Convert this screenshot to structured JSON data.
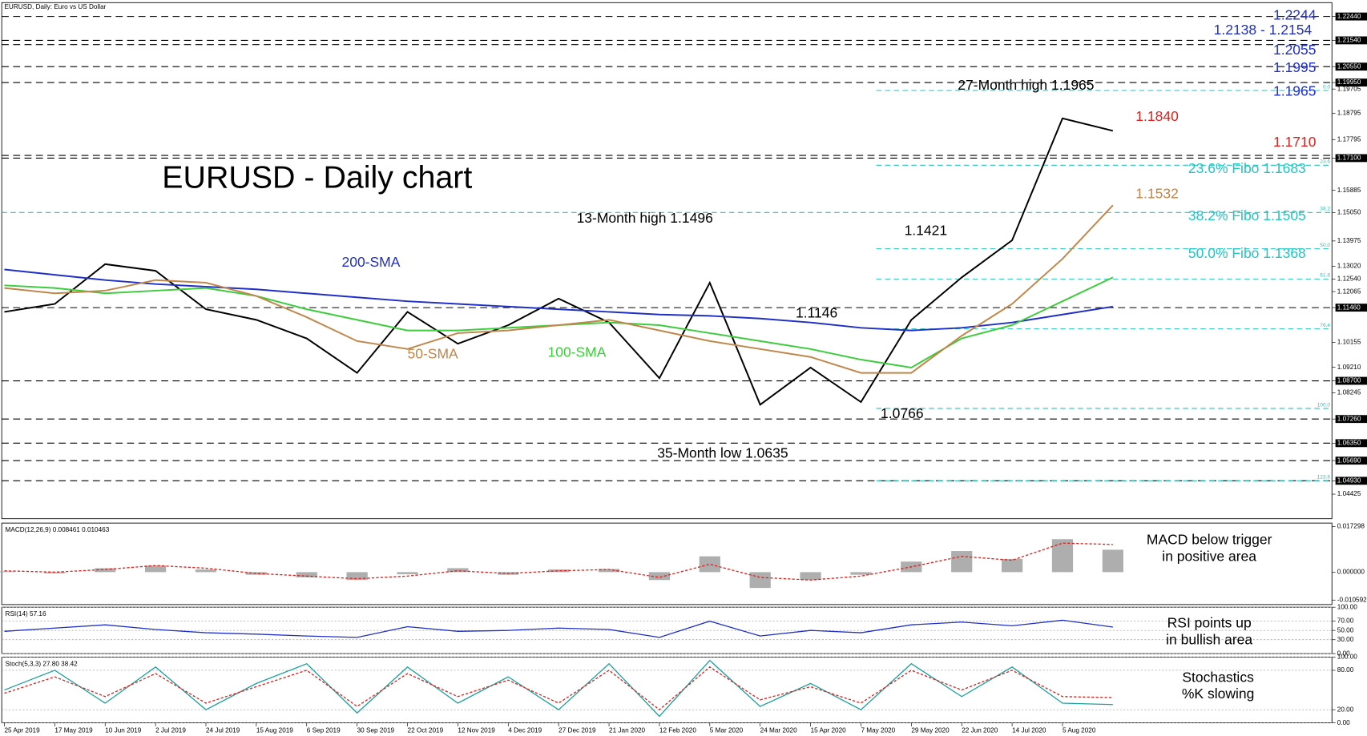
{
  "header": "EURUSD, Daily:  Euro vs US Dollar",
  "chart_data": [
    {
      "type": "line",
      "categories": [
        "25 Apr 2019",
        "17 May 2019",
        "10 Jun 2019",
        "2 Jul 2019",
        "24 Jul 2019",
        "15 Aug 2019",
        "6 Sep 2019",
        "30 Sep 2019",
        "22 Oct 2019",
        "12 Nov 2019",
        "4 Dec 2019",
        "27 Dec 2019",
        "21 Jan 2020",
        "12 Feb 2020",
        "5 Mar 2020",
        "24 Mar 2020",
        "15 Apr 2020",
        "7 May 2020",
        "29 May 2020",
        "22 Jun 2020",
        "14 Jul 2020",
        "5 Aug 2020",
        null
      ],
      "series": [
        {
          "color": "#000000",
          "values": [
            1.113,
            1.116,
            1.131,
            1.1285,
            1.114,
            1.11,
            1.103,
            1.09,
            1.113,
            1.101,
            1.108,
            1.118,
            1.109,
            1.088,
            1.124,
            1.078,
            1.092,
            1.079,
            1.11,
            1.126,
            1.14,
            1.186,
            1.1813
          ]
        },
        {
          "name": "200-SMA",
          "color": "#1f2fc8",
          "values": [
            1.129,
            1.127,
            1.125,
            1.1235,
            1.1225,
            1.1215,
            1.12,
            1.1185,
            1.117,
            1.116,
            1.115,
            1.114,
            1.113,
            1.112,
            1.1115,
            1.1105,
            1.109,
            1.107,
            1.106,
            1.107,
            1.109,
            1.112,
            1.115
          ]
        },
        {
          "name": "100-SMA",
          "color": "#3ccc3c",
          "values": [
            1.123,
            1.122,
            1.12,
            1.121,
            1.122,
            1.119,
            1.114,
            1.11,
            1.106,
            1.106,
            1.107,
            1.108,
            1.109,
            1.108,
            1.105,
            1.102,
            1.099,
            1.095,
            1.092,
            1.103,
            1.108,
            1.117,
            1.126
          ]
        },
        {
          "name": "50-SMA",
          "color": "#c0864a",
          "values": [
            1.122,
            1.12,
            1.121,
            1.125,
            1.124,
            1.119,
            1.111,
            1.102,
            1.099,
            1.105,
            1.106,
            1.108,
            1.11,
            1.106,
            1.102,
            1.099,
            1.096,
            1.09,
            1.09,
            1.104,
            1.116,
            1.133,
            1.1532
          ]
        }
      ],
      "ylim": [
        1.035,
        1.226
      ],
      "yticks": [
        {
          "value": 1.2244,
          "label": "1.22440"
        },
        {
          "value": 1.2154,
          "label": "1.21540"
        },
        {
          "value": 1.2055,
          "label": "1.20550"
        },
        {
          "value": 1.1995,
          "label": "1.19950"
        },
        {
          "value": 1.19705,
          "label": "1.19705"
        },
        {
          "value": 1.18795,
          "label": "1.18795"
        },
        {
          "value": 1.17795,
          "label": "1.17795"
        },
        {
          "value": 1.171,
          "label": "1.17100"
        },
        {
          "value": 1.15885,
          "label": "1.15885"
        },
        {
          "value": 1.1505,
          "label": "1.15050"
        },
        {
          "value": 1.13975,
          "label": "1.13975"
        },
        {
          "value": 1.1302,
          "label": "1.13020"
        },
        {
          "value": 1.1254,
          "label": "1.12540"
        },
        {
          "value": 1.12065,
          "label": "1.12065"
        },
        {
          "value": 1.1146,
          "label": "1.11460"
        },
        {
          "value": 1.10155,
          "label": "1.10155"
        },
        {
          "value": 1.0921,
          "label": "1.09210"
        },
        {
          "value": 1.087,
          "label": "1.08700"
        },
        {
          "value": 1.08245,
          "label": "1.08245"
        },
        {
          "value": 1.0726,
          "label": "1.07260"
        },
        {
          "value": 1.0635,
          "label": "1.06350"
        },
        {
          "value": 1.0569,
          "label": "1.05690"
        },
        {
          "value": 1.0493,
          "label": "1.04930"
        },
        {
          "value": 1.04425,
          "label": "1.04425"
        }
      ],
      "levels": [
        1.2244,
        1.2154,
        1.2138,
        1.2055,
        1.1995,
        1.172,
        1.171,
        1.1146,
        1.087,
        1.0726,
        1.0635,
        1.0569,
        1.0493
      ],
      "fib_levels": [
        {
          "value": 1.1965,
          "label": "0.0"
        },
        {
          "value": 1.1683,
          "label": "23.6"
        },
        {
          "value": 1.1505,
          "label": "38.2"
        },
        {
          "value": 1.1368,
          "label": "50.0"
        },
        {
          "value": 1.1254,
          "label": "61.8"
        },
        {
          "value": 1.1066,
          "label": "76.4"
        },
        {
          "value": 1.0766,
          "label": "100.0"
        },
        {
          "value": 1.0493,
          "label": "123.6"
        }
      ],
      "fib_color": "#22c4c4",
      "annotations": [
        {
          "text": "EURUSD - Daily chart",
          "color": "#000000"
        },
        {
          "text": "13-Month high 1.1496",
          "color": "#000000"
        },
        {
          "text": "1.1421",
          "color": "#000000"
        },
        {
          "text": "1.1146",
          "color": "#000000"
        },
        {
          "text": "1.0766",
          "color": "#000000"
        },
        {
          "text": "35-Month low 1.0635",
          "color": "#000000"
        },
        {
          "text": "27-Month high 1.1965",
          "color": "#000000"
        },
        {
          "text": "1.1840",
          "color": "#e0201c"
        },
        {
          "text": "1.1710",
          "color": "#e0201c"
        },
        {
          "text": "1.1532",
          "color": "#c0864a"
        },
        {
          "text": "23.6% Fibo 1.1683",
          "color": "#22c4c4"
        },
        {
          "text": "38.2% Fibo 1.1505",
          "color": "#22c4c4"
        },
        {
          "text": "50.0% Fibo 1.1368",
          "color": "#22c4c4"
        },
        {
          "text": "1.2244",
          "color": "#1f2fc8"
        },
        {
          "text": "1.2138 - 1.2154",
          "color": "#1f2fc8"
        },
        {
          "text": "1.2055",
          "color": "#1f2fc8"
        },
        {
          "text": "1.1995",
          "color": "#1f2fc8"
        },
        {
          "text": "1.1965",
          "color": "#1f2fc8"
        }
      ]
    },
    {
      "type": "bar",
      "title": "MACD(12,26,9) 0.008461 0.010463",
      "color": "#9a9a9a",
      "values": [
        0.0003,
        -0.0005,
        0.0015,
        0.0025,
        0.001,
        -0.001,
        -0.002,
        -0.003,
        -0.0008,
        0.0015,
        -0.001,
        0.001,
        0.0012,
        -0.003,
        0.006,
        -0.006,
        -0.003,
        -0.001,
        0.004,
        0.008,
        0.005,
        0.0125,
        0.0085
      ],
      "series": [
        {
          "color": "#e0201c",
          "values": [
            0.0005,
            0,
            0.001,
            0.0025,
            0.0015,
            -0.0005,
            -0.0015,
            -0.0025,
            -0.0015,
            0.0005,
            -0.0005,
            0.0005,
            0.001,
            -0.002,
            0.003,
            -0.002,
            -0.003,
            -0.0015,
            0.002,
            0.006,
            0.0045,
            0.011,
            0.0105
          ]
        }
      ],
      "ylim": [
        -0.0123,
        0.0186
      ],
      "yticks": [
        {
          "value": 0.017298,
          "label": "0.017298"
        },
        {
          "value": 0,
          "label": "0.000000"
        },
        {
          "value": -0.010592,
          "label": "-0.010592"
        }
      ],
      "annotation": [
        "MACD below trigger",
        "in positive area"
      ]
    },
    {
      "type": "line",
      "title": "RSI(14) 57.16",
      "series": [
        {
          "color": "#1f2fc8",
          "values": [
            48,
            55,
            62,
            52,
            45,
            42,
            38,
            35,
            58,
            48,
            50,
            55,
            52,
            35,
            70,
            38,
            50,
            45,
            62,
            68,
            60,
            72,
            57.16
          ]
        }
      ],
      "ylim": [
        0,
        100
      ],
      "yticks": [
        {
          "value": 100,
          "label": "100.00"
        },
        {
          "value": 70,
          "label": "70.00"
        },
        {
          "value": 50,
          "label": "50.00"
        },
        {
          "value": 30,
          "label": "30.00"
        },
        {
          "value": 0,
          "label": "0.00"
        }
      ],
      "grid": true,
      "annotation": [
        "RSI points up",
        "in bullish area"
      ]
    },
    {
      "type": "line",
      "title": "Stoch(5,3,3) 27.80 38.42",
      "series": [
        {
          "color": "#1aa0a0",
          "values": [
            50,
            80,
            30,
            85,
            20,
            60,
            90,
            15,
            85,
            30,
            70,
            20,
            90,
            10,
            95,
            25,
            60,
            20,
            90,
            40,
            85,
            30,
            27.8
          ]
        },
        {
          "color": "#e0201c",
          "dashed": true,
          "values": [
            45,
            70,
            40,
            75,
            30,
            55,
            80,
            25,
            75,
            40,
            65,
            30,
            80,
            20,
            85,
            35,
            55,
            30,
            80,
            50,
            80,
            40,
            38.42
          ]
        }
      ],
      "ylim": [
        0,
        100
      ],
      "yticks": [
        {
          "value": 100,
          "label": "100.00"
        },
        {
          "value": 80,
          "label": "80.00"
        },
        {
          "value": 20,
          "label": "20.00"
        },
        {
          "value": 0,
          "label": "0.00"
        }
      ],
      "grid": true,
      "annotation": [
        "Stochastics",
        "%K slowing"
      ]
    }
  ]
}
